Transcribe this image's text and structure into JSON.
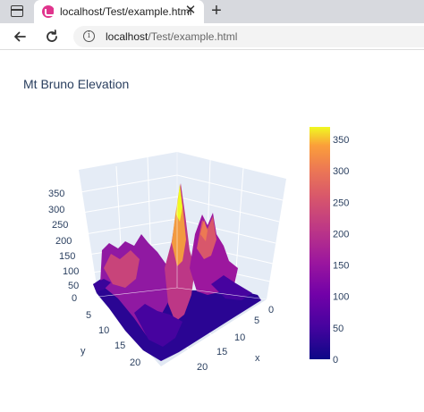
{
  "browser": {
    "tab": {
      "title": "localhost/Test/example.html",
      "close_glyph": "✕"
    },
    "new_tab_glyph": "+",
    "address": {
      "host": "localhost",
      "path": "/Test/example.html"
    },
    "icons": {
      "sidebar": "sidebar-toggle-icon",
      "favicon": "favicon-icon",
      "back": "back-arrow-icon",
      "reload": "reload-icon",
      "info": "info-icon"
    }
  },
  "chart_data": {
    "type": "surface",
    "title": "Mt Bruno Elevation",
    "axes": {
      "x": {
        "label": "x",
        "ticks": [
          "0",
          "5",
          "10",
          "15",
          "20"
        ]
      },
      "y": {
        "label": "y",
        "ticks": [
          "0",
          "5",
          "10",
          "15",
          "20"
        ]
      },
      "z": {
        "label": "",
        "ticks": [
          "50",
          "100",
          "150",
          "200",
          "250",
          "300",
          "350"
        ]
      }
    },
    "zlim": [
      0,
      370
    ],
    "colorscale": "plasma",
    "colorbar": {
      "ticks": [
        0,
        50,
        100,
        150,
        200,
        250,
        300,
        350
      ],
      "range": [
        0,
        370
      ]
    },
    "peak_elevation": 370
  }
}
